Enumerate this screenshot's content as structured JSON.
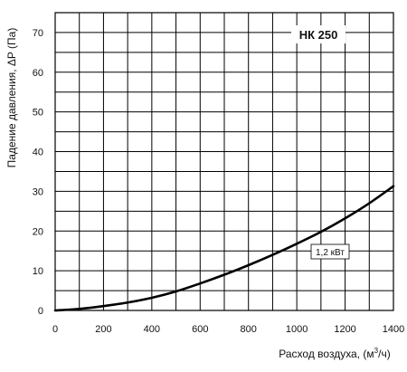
{
  "chart_data": {
    "type": "line",
    "title": "НК 250",
    "xlabel_prefix": "Расход воздуха, (м",
    "xlabel_sup": "3",
    "xlabel_suffix": "/ч)",
    "ylabel": "Падение давления, ΔP (Па)",
    "xlim": [
      0,
      1400
    ],
    "ylim": [
      0,
      75
    ],
    "x_ticks": [
      0,
      200,
      400,
      600,
      800,
      1000,
      1200,
      1400
    ],
    "y_ticks": [
      0,
      10,
      20,
      30,
      40,
      50,
      60,
      70
    ],
    "x_grid": [
      0,
      100,
      200,
      300,
      400,
      500,
      600,
      700,
      800,
      900,
      1000,
      1100,
      1200,
      1300,
      1400
    ],
    "y_grid": [
      0,
      5,
      10,
      15,
      20,
      25,
      30,
      35,
      40,
      45,
      50,
      55,
      60,
      65,
      70,
      75
    ],
    "grid": true,
    "series": [
      {
        "name": "1,2 кВт",
        "color": "#000000",
        "x": [
          0,
          100,
          200,
          300,
          400,
          500,
          600,
          700,
          800,
          900,
          1000,
          1100,
          1200,
          1300,
          1400
        ],
        "y": [
          0,
          0.4,
          1.1,
          2.0,
          3.2,
          4.8,
          6.8,
          9.0,
          11.4,
          14.0,
          16.8,
          19.8,
          23.2,
          27.0,
          31.3
        ]
      }
    ]
  }
}
